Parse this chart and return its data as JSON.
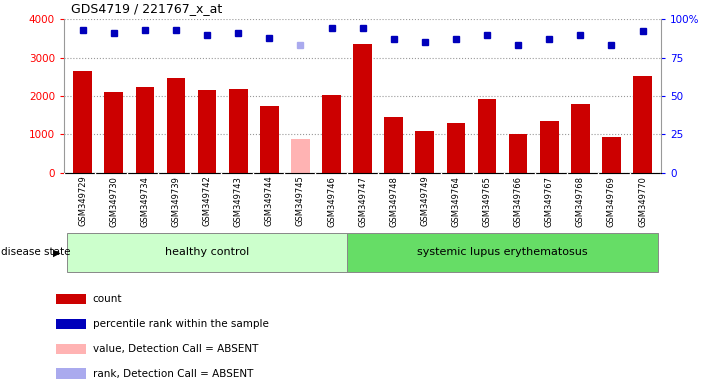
{
  "title": "GDS4719 / 221767_x_at",
  "samples": [
    "GSM349729",
    "GSM349730",
    "GSM349734",
    "GSM349739",
    "GSM349742",
    "GSM349743",
    "GSM349744",
    "GSM349745",
    "GSM349746",
    "GSM349747",
    "GSM349748",
    "GSM349749",
    "GSM349764",
    "GSM349765",
    "GSM349766",
    "GSM349767",
    "GSM349768",
    "GSM349769",
    "GSM349770"
  ],
  "bar_values": [
    2650,
    2100,
    2230,
    2470,
    2160,
    2175,
    1750,
    880,
    2030,
    3360,
    1450,
    1090,
    1300,
    1920,
    1000,
    1360,
    1790,
    920,
    2520
  ],
  "bar_absent": [
    false,
    false,
    false,
    false,
    false,
    false,
    false,
    true,
    false,
    false,
    false,
    false,
    false,
    false,
    false,
    false,
    false,
    false,
    false
  ],
  "percentile_values": [
    93,
    91,
    93,
    93,
    90,
    91,
    88,
    83,
    94,
    94,
    87,
    85,
    87,
    90,
    83,
    87,
    90,
    83,
    92
  ],
  "percentile_absent": [
    false,
    false,
    false,
    false,
    false,
    false,
    false,
    true,
    false,
    false,
    false,
    false,
    false,
    false,
    false,
    false,
    false,
    false,
    false
  ],
  "healthy_count": 9,
  "ylim_left": [
    0,
    4000
  ],
  "ylim_right": [
    0,
    100
  ],
  "yticks_left": [
    0,
    1000,
    2000,
    3000,
    4000
  ],
  "yticks_right": [
    0,
    25,
    50,
    75,
    100
  ],
  "bar_color_normal": "#cc0000",
  "bar_color_absent": "#ffb3b3",
  "dot_color_normal": "#0000bb",
  "dot_color_absent": "#aaaaee",
  "healthy_label": "healthy control",
  "disease_label": "systemic lupus erythematosus",
  "disease_state_label": "disease state",
  "healthy_bg": "#ccffcc",
  "disease_bg": "#66dd66",
  "legend_items": [
    {
      "color": "#cc0000",
      "label": "count"
    },
    {
      "color": "#0000bb",
      "label": "percentile rank within the sample"
    },
    {
      "color": "#ffb3b3",
      "label": "value, Detection Call = ABSENT"
    },
    {
      "color": "#aaaaee",
      "label": "rank, Detection Call = ABSENT"
    }
  ],
  "grid_color": "#999999",
  "background_color": "#ffffff",
  "tick_area_bg": "#cccccc"
}
